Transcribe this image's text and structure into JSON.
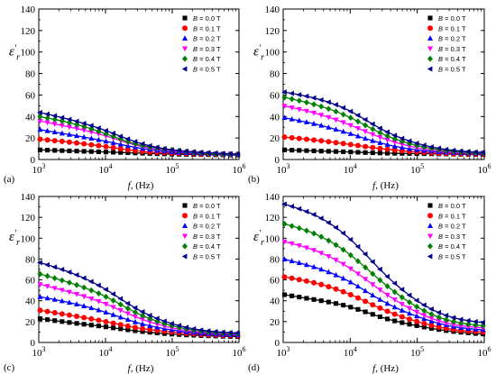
{
  "figure": {
    "ylabel_main": "ε",
    "ylabel_prime": "′",
    "ylabel_sub": "r",
    "xlabel_main": "f",
    "xlabel_unit": ", (Hz)",
    "legend_var": "B",
    "legend_suffix": " = ",
    "legend_unit": " T"
  },
  "chart_data": [
    {
      "type": "line",
      "panel_label": "(a)",
      "xscale": "log",
      "xlim": [
        1000,
        1000000
      ],
      "ylim": [
        0,
        140
      ],
      "y_ticks": [
        0,
        20,
        40,
        60,
        80,
        100,
        120,
        140
      ],
      "x_ticks": [
        1000,
        10000,
        100000,
        1000000
      ],
      "legend_placement": "top-right",
      "x": [
        1000,
        3000,
        10000,
        30000,
        100000,
        300000,
        1000000
      ],
      "series": [
        {
          "name": "0.0",
          "color": "#000000",
          "marker": "square",
          "values": [
            9,
            8,
            7,
            6,
            5,
            4.5,
            4
          ]
        },
        {
          "name": "0.1",
          "color": "#ff0000",
          "marker": "circle",
          "values": [
            19,
            16,
            12,
            8,
            6,
            5,
            4.5
          ]
        },
        {
          "name": "0.2",
          "color": "#0000ff",
          "marker": "triangle-up",
          "values": [
            28,
            23,
            17,
            11,
            7,
            5.5,
            4.5
          ]
        },
        {
          "name": "0.3",
          "color": "#ff00ff",
          "marker": "triangle-down",
          "values": [
            36,
            30,
            22,
            13,
            8,
            6,
            5
          ]
        },
        {
          "name": "0.4",
          "color": "#008000",
          "marker": "diamond",
          "values": [
            40,
            34,
            24,
            14,
            9,
            6,
            5
          ]
        },
        {
          "name": "0.5",
          "color": "#00008b",
          "marker": "triangle-left",
          "values": [
            44,
            37,
            27,
            16,
            9,
            6.5,
            5
          ]
        }
      ]
    },
    {
      "type": "line",
      "panel_label": "(b)",
      "xscale": "log",
      "xlim": [
        1000,
        1000000
      ],
      "ylim": [
        0,
        140
      ],
      "y_ticks": [
        0,
        20,
        40,
        60,
        80,
        100,
        120,
        140
      ],
      "x_ticks": [
        1000,
        10000,
        100000,
        1000000
      ],
      "legend_placement": "top-right",
      "x": [
        1000,
        3000,
        10000,
        30000,
        100000,
        300000,
        1000000
      ],
      "series": [
        {
          "name": "0.0",
          "color": "#000000",
          "marker": "square",
          "values": [
            9,
            8,
            7,
            6,
            5.5,
            5,
            4.5
          ]
        },
        {
          "name": "0.1",
          "color": "#ff0000",
          "marker": "circle",
          "values": [
            21,
            18,
            14,
            10,
            7,
            5.5,
            5
          ]
        },
        {
          "name": "0.2",
          "color": "#0000ff",
          "marker": "triangle-up",
          "values": [
            39,
            33,
            24,
            15,
            9,
            6.5,
            5.5
          ]
        },
        {
          "name": "0.3",
          "color": "#ff00ff",
          "marker": "triangle-down",
          "values": [
            50,
            43,
            32,
            20,
            11,
            7,
            6
          ]
        },
        {
          "name": "0.4",
          "color": "#008000",
          "marker": "diamond",
          "values": [
            58,
            51,
            39,
            24,
            13,
            8,
            6
          ]
        },
        {
          "name": "0.5",
          "color": "#00008b",
          "marker": "triangle-left",
          "values": [
            63,
            57,
            45,
            28,
            15,
            9,
            6.5
          ]
        }
      ]
    },
    {
      "type": "line",
      "panel_label": "(c)",
      "xscale": "log",
      "xlim": [
        1000,
        1000000
      ],
      "ylim": [
        0,
        140
      ],
      "y_ticks": [
        0,
        20,
        40,
        60,
        80,
        100,
        120,
        140
      ],
      "x_ticks": [
        1000,
        10000,
        100000,
        1000000
      ],
      "legend_placement": "top-right",
      "x": [
        1000,
        3000,
        10000,
        30000,
        100000,
        300000,
        1000000
      ],
      "series": [
        {
          "name": "0.0",
          "color": "#000000",
          "marker": "square",
          "values": [
            23,
            19,
            15,
            11,
            8,
            6.5,
            5.5
          ]
        },
        {
          "name": "0.1",
          "color": "#ff0000",
          "marker": "circle",
          "values": [
            31,
            26,
            20,
            14,
            10,
            7.5,
            6.5
          ]
        },
        {
          "name": "0.2",
          "color": "#0000ff",
          "marker": "triangle-up",
          "values": [
            44,
            38,
            29,
            19,
            12,
            8.5,
            7
          ]
        },
        {
          "name": "0.3",
          "color": "#ff00ff",
          "marker": "triangle-down",
          "values": [
            56,
            48,
            37,
            24,
            14,
            9.5,
            8
          ]
        },
        {
          "name": "0.4",
          "color": "#008000",
          "marker": "diamond",
          "values": [
            66,
            57,
            44,
            28,
            16,
            10.5,
            8.5
          ]
        },
        {
          "name": "0.5",
          "color": "#00008b",
          "marker": "triangle-left",
          "values": [
            77,
            67,
            51,
            32,
            18,
            11.5,
            9
          ]
        }
      ]
    },
    {
      "type": "line",
      "panel_label": "(d)",
      "xscale": "log",
      "xlim": [
        1000,
        1000000
      ],
      "ylim": [
        0,
        140
      ],
      "y_ticks": [
        0,
        20,
        40,
        60,
        80,
        100,
        120,
        140
      ],
      "x_ticks": [
        1000,
        10000,
        100000,
        1000000
      ],
      "legend_placement": "top-right",
      "x": [
        1000,
        3000,
        10000,
        30000,
        100000,
        300000,
        1000000
      ],
      "series": [
        {
          "name": "0.0",
          "color": "#000000",
          "marker": "square",
          "values": [
            46,
            41,
            34,
            24,
            16,
            11,
            8
          ]
        },
        {
          "name": "0.1",
          "color": "#ff0000",
          "marker": "circle",
          "values": [
            63,
            57,
            46,
            32,
            20,
            13,
            10
          ]
        },
        {
          "name": "0.2",
          "color": "#0000ff",
          "marker": "triangle-up",
          "values": [
            80,
            72,
            58,
            40,
            25,
            16,
            12
          ]
        },
        {
          "name": "0.3",
          "color": "#ff00ff",
          "marker": "triangle-down",
          "values": [
            97,
            88,
            71,
            49,
            29,
            18,
            14
          ]
        },
        {
          "name": "0.4",
          "color": "#008000",
          "marker": "diamond",
          "values": [
            114,
            104,
            84,
            58,
            34,
            21,
            16
          ]
        },
        {
          "name": "0.5",
          "color": "#00008b",
          "marker": "triangle-left",
          "values": [
            133,
            122,
            99,
            68,
            40,
            25,
            19
          ]
        }
      ]
    }
  ]
}
